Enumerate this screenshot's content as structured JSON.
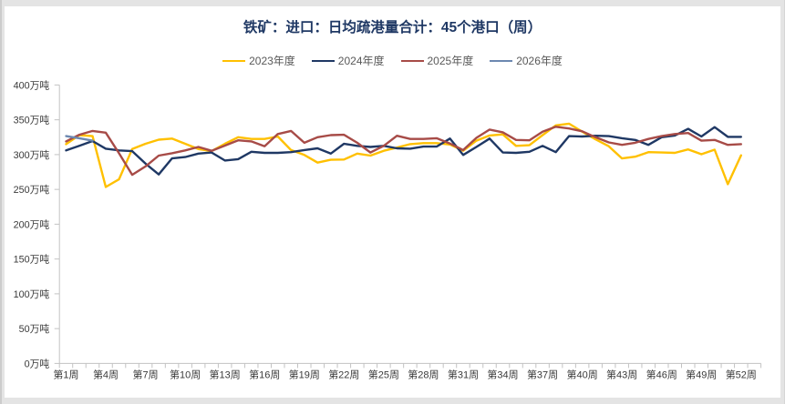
{
  "title": "铁矿：进口：日均疏港量合计：45个港口（周）",
  "colors": {
    "title": "#1f3864",
    "frame_background": "#e4e4e4",
    "card_background": "#ffffff",
    "axis": "#c3c3c3",
    "tick_label": "#3a3a3a",
    "legend_label": "#595959"
  },
  "chart_data": {
    "type": "line",
    "title": "铁矿：进口：日均疏港量合计：45个港口（周）",
    "xlabel": "",
    "ylabel": "万吨",
    "ylim": [
      0,
      400
    ],
    "y_tick_step": 50,
    "y_tick_labels": [
      "0万吨",
      "50万吨",
      "100万吨",
      "150万吨",
      "200万吨",
      "250万吨",
      "300万吨",
      "350万吨",
      "400万吨"
    ],
    "x_axis_slots": 53,
    "x_tick_label_weeks": [
      1,
      4,
      7,
      10,
      13,
      16,
      19,
      22,
      25,
      28,
      31,
      34,
      37,
      40,
      43,
      46,
      49,
      52
    ],
    "x_tick_labels": [
      "第1周",
      "第4周",
      "第7周",
      "第10周",
      "第13周",
      "第16周",
      "第19周",
      "第22周",
      "第25周",
      "第28周",
      "第31周",
      "第34周",
      "第37周",
      "第40周",
      "第43周",
      "第46周",
      "第49周",
      "第52周"
    ],
    "grid": "off",
    "legend_position": "top",
    "series": [
      {
        "name": "2023年度",
        "color": "#FFC000",
        "start_week": 1,
        "values": [
          315,
          328,
          326.5,
          253.5,
          264.5,
          308,
          315.5,
          321.5,
          323,
          315.5,
          308,
          305,
          315.5,
          325,
          322.5,
          322.5,
          326,
          306.5,
          299.5,
          288.5,
          292.5,
          293,
          301.5,
          298.5,
          305.5,
          310,
          315,
          316.5,
          316.5,
          314.5,
          305.5,
          320,
          327.5,
          329,
          312.5,
          313.5,
          328,
          342,
          344.5,
          333,
          322,
          312,
          294.5,
          297,
          303.5,
          303,
          302.5,
          307.5,
          300.5,
          307,
          257.5,
          299
        ]
      },
      {
        "name": "2024年度",
        "color": "#1F3864",
        "start_week": 1,
        "values": [
          306,
          312.5,
          319.5,
          308.5,
          306,
          305,
          287,
          271.5,
          294.5,
          296.5,
          301.5,
          303,
          291.5,
          293.5,
          304,
          302.5,
          302.5,
          303.5,
          306.5,
          309,
          301.5,
          315.5,
          312.5,
          311,
          312.5,
          309,
          308.5,
          311.5,
          311.5,
          323,
          299.5,
          311,
          323,
          303,
          302.5,
          304,
          312.5,
          303.5,
          326.5,
          326,
          327,
          326.5,
          323.5,
          321,
          314,
          325,
          327.5,
          337,
          326,
          339.5,
          325.5,
          325.5
        ]
      },
      {
        "name": "2025年度",
        "color": "#A74B47",
        "start_week": 1,
        "values": [
          319,
          328.5,
          334,
          331.5,
          302,
          271,
          283,
          298.5,
          302,
          306,
          311,
          305.5,
          313,
          320.5,
          319,
          312,
          329.5,
          334,
          317,
          325,
          328,
          328.5,
          317,
          303,
          312.5,
          327,
          322.5,
          322.5,
          323.5,
          316,
          306.5,
          324,
          336,
          332,
          321,
          320.5,
          333,
          340,
          337.5,
          333.5,
          325,
          317.5,
          314,
          317,
          322.5,
          326.5,
          329.5,
          331,
          320,
          321,
          314,
          315
        ]
      },
      {
        "name": "2026年度",
        "color": "#6C88B0",
        "start_week": 1,
        "values": [
          326.5,
          323.5,
          320
        ]
      }
    ]
  }
}
